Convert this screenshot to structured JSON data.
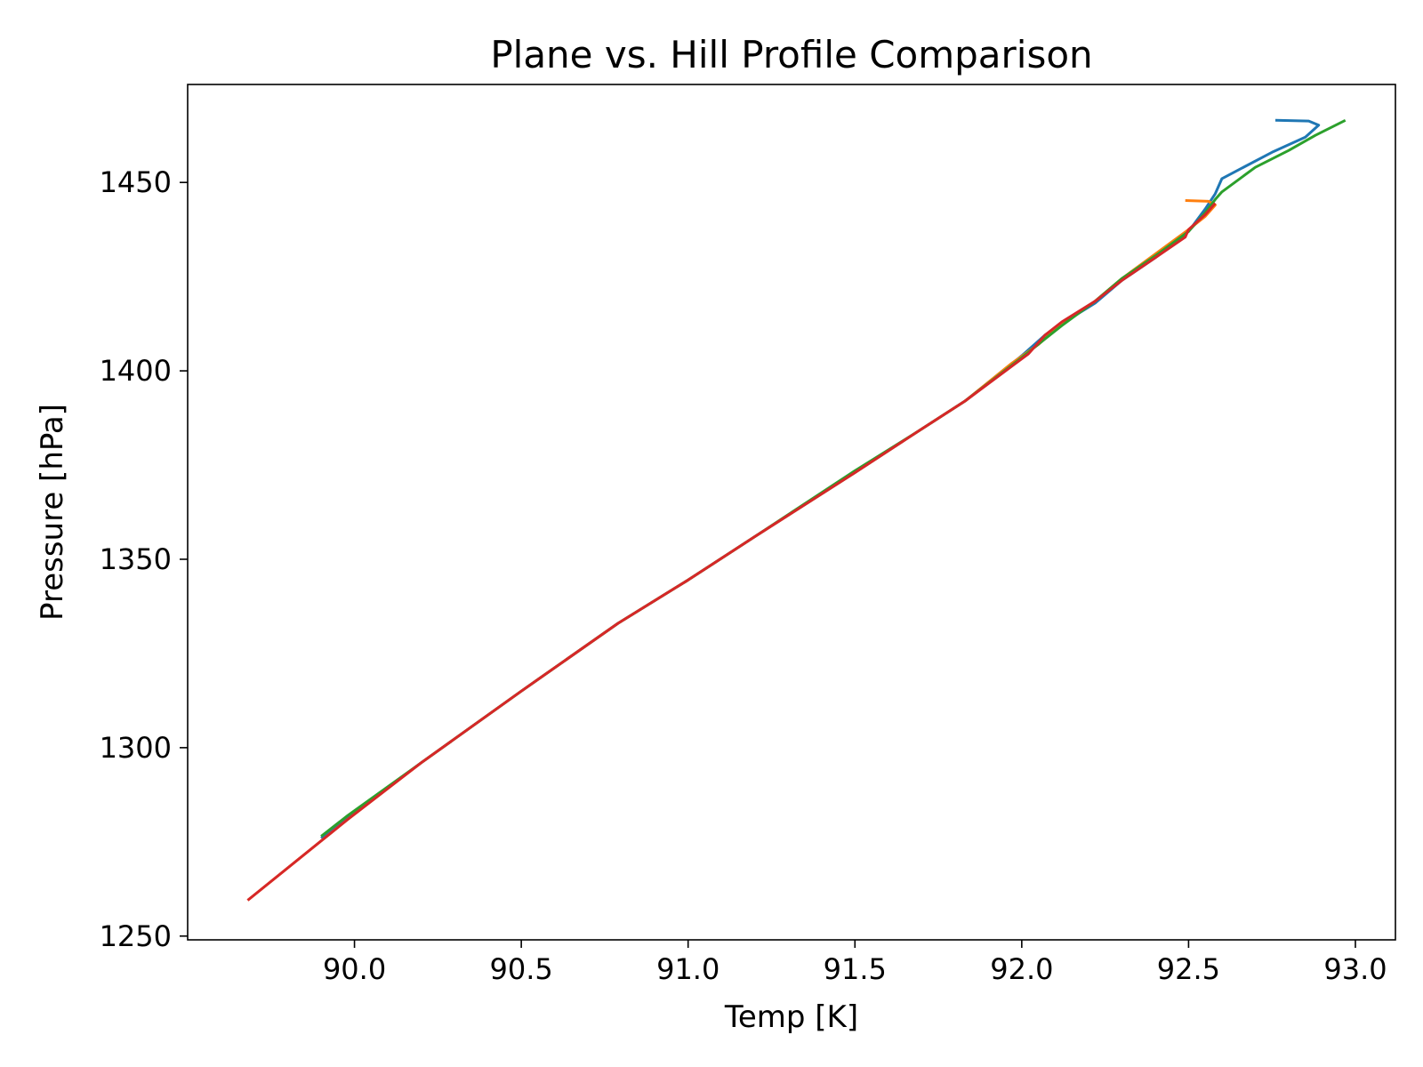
{
  "chart_data": {
    "type": "line",
    "title": "Plane vs. Hill Profile Comparison",
    "xlabel": "Temp [K]",
    "ylabel": "Pressure [hPa]",
    "xlim": [
      89.5,
      93.12
    ],
    "ylim": [
      1249,
      1476
    ],
    "x_ticks": [
      90.0,
      90.5,
      91.0,
      91.5,
      92.0,
      92.5,
      93.0
    ],
    "x_tick_labels": [
      "90.0",
      "90.5",
      "91.0",
      "91.5",
      "92.0",
      "92.5",
      "93.0"
    ],
    "y_ticks": [
      1250,
      1300,
      1350,
      1400,
      1450
    ],
    "y_tick_labels": [
      "1250",
      "1300",
      "1350",
      "1400",
      "1450"
    ],
    "grid": false,
    "series": [
      {
        "color": "#1f77b4",
        "points": [
          [
            92.76,
            1466.5
          ],
          [
            92.86,
            1466.3
          ],
          [
            92.89,
            1465.2
          ],
          [
            92.85,
            1462.0
          ],
          [
            92.75,
            1458.0
          ],
          [
            92.6,
            1451.0
          ],
          [
            92.58,
            1447.0
          ],
          [
            92.55,
            1443.0
          ],
          [
            92.5,
            1437.0
          ],
          [
            92.4,
            1430.0
          ],
          [
            92.3,
            1424.0
          ],
          [
            92.22,
            1418.0
          ],
          [
            92.12,
            1412.5
          ],
          [
            92.07,
            1409.5
          ],
          [
            92.0,
            1404.0
          ],
          [
            91.83,
            1392.0
          ],
          [
            91.69,
            1384.0
          ],
          [
            91.5,
            1373.0
          ],
          [
            91.2,
            1356.0
          ],
          [
            91.0,
            1344.5
          ],
          [
            90.79,
            1333.0
          ],
          [
            90.5,
            1315.0
          ],
          [
            90.2,
            1296.0
          ],
          [
            89.98,
            1281.5
          ],
          [
            89.9,
            1276.0
          ]
        ]
      },
      {
        "color": "#ff7f0e",
        "points": [
          [
            92.49,
            1445.2
          ],
          [
            92.56,
            1445.0
          ],
          [
            92.58,
            1444.0
          ],
          [
            92.55,
            1441.0
          ],
          [
            92.5,
            1437.5
          ],
          [
            92.4,
            1431.0
          ],
          [
            92.3,
            1424.5
          ],
          [
            92.22,
            1418.5
          ],
          [
            92.12,
            1412.5
          ],
          [
            92.05,
            1407.0
          ],
          [
            91.97,
            1402.0
          ],
          [
            91.83,
            1392.0
          ],
          [
            91.69,
            1384.0
          ],
          [
            91.5,
            1373.0
          ],
          [
            91.2,
            1356.0
          ],
          [
            91.0,
            1344.5
          ],
          [
            90.79,
            1333.0
          ],
          [
            90.5,
            1315.0
          ],
          [
            90.2,
            1296.0
          ],
          [
            89.98,
            1281.0
          ],
          [
            89.68,
            1259.5
          ]
        ]
      },
      {
        "color": "#2ca02c",
        "points": [
          [
            92.97,
            1466.5
          ],
          [
            92.88,
            1462.5
          ],
          [
            92.8,
            1458.5
          ],
          [
            92.7,
            1454.0
          ],
          [
            92.6,
            1447.5
          ],
          [
            92.58,
            1445.5
          ],
          [
            92.55,
            1442.0
          ],
          [
            92.5,
            1437.0
          ],
          [
            92.4,
            1430.5
          ],
          [
            92.3,
            1424.5
          ],
          [
            92.22,
            1418.5
          ],
          [
            92.12,
            1412.0
          ],
          [
            92.07,
            1408.5
          ],
          [
            92.0,
            1403.5
          ],
          [
            91.83,
            1392.0
          ],
          [
            91.69,
            1384.0
          ],
          [
            91.5,
            1373.5
          ],
          [
            91.2,
            1356.0
          ],
          [
            91.0,
            1344.5
          ],
          [
            90.79,
            1333.0
          ],
          [
            90.5,
            1315.0
          ],
          [
            90.2,
            1296.0
          ],
          [
            89.98,
            1282.0
          ],
          [
            89.9,
            1276.5
          ]
        ]
      },
      {
        "color": "#d62728",
        "points": [
          [
            92.58,
            1444.5
          ],
          [
            92.55,
            1441.5
          ],
          [
            92.5,
            1437.5
          ],
          [
            92.49,
            1435.5
          ],
          [
            92.4,
            1430.0
          ],
          [
            92.3,
            1424.0
          ],
          [
            92.22,
            1418.5
          ],
          [
            92.12,
            1413.0
          ],
          [
            92.07,
            1409.5
          ],
          [
            92.02,
            1404.5
          ],
          [
            91.83,
            1392.0
          ],
          [
            91.69,
            1384.0
          ],
          [
            91.5,
            1373.0
          ],
          [
            91.2,
            1356.0
          ],
          [
            91.0,
            1344.5
          ],
          [
            90.79,
            1333.0
          ],
          [
            90.5,
            1315.0
          ],
          [
            90.2,
            1296.0
          ],
          [
            89.98,
            1281.0
          ],
          [
            89.68,
            1259.5
          ]
        ]
      }
    ]
  }
}
